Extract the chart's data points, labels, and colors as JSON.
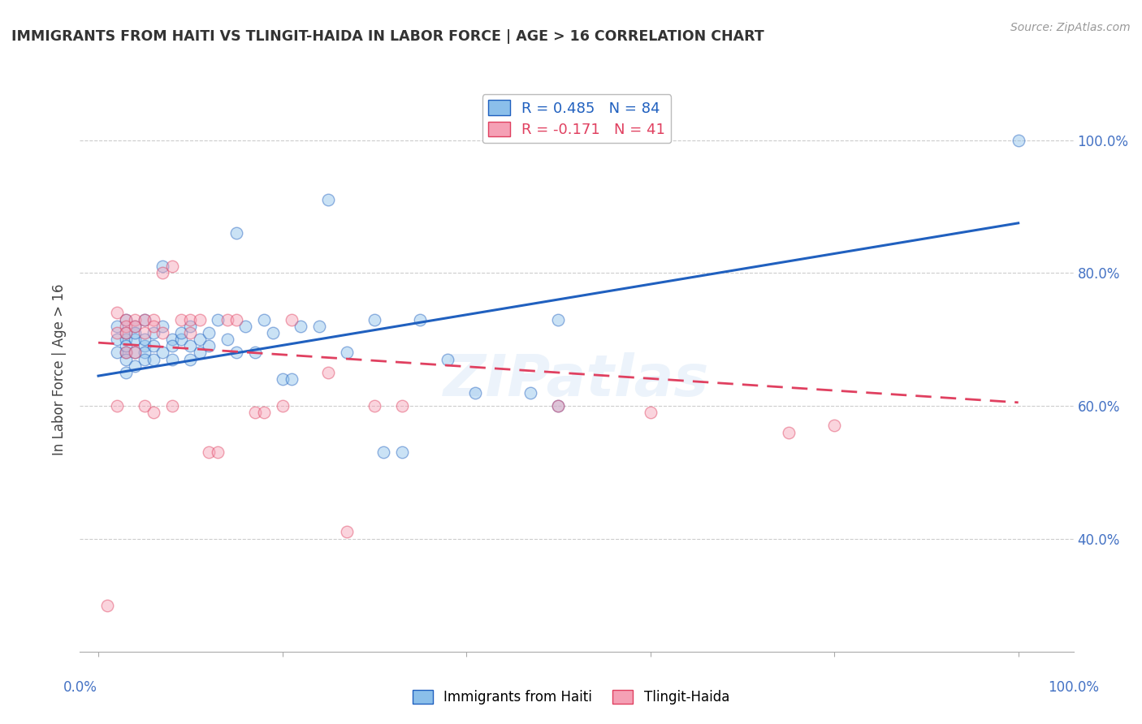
{
  "title": "IMMIGRANTS FROM HAITI VS TLINGIT-HAIDA IN LABOR FORCE | AGE > 16 CORRELATION CHART",
  "source": "Source: ZipAtlas.com",
  "ylabel": "In Labor Force | Age > 16",
  "y_tick_values": [
    1.0,
    0.8,
    0.6,
    0.4
  ],
  "y_tick_labels": [
    "100.0%",
    "80.0%",
    "60.0%",
    "40.0%"
  ],
  "xlim": [
    -0.02,
    1.06
  ],
  "ylim": [
    0.23,
    1.08
  ],
  "color_haiti": "#8bbfea",
  "color_tlingit": "#f5a0b5",
  "trendline_haiti_color": "#2060bf",
  "trendline_tlingit_color": "#e04060",
  "background_color": "#ffffff",
  "grid_color": "#cccccc",
  "axis_label_color": "#4472c4",
  "title_color": "#333333",
  "watermark": "ZIPatlas",
  "haiti_x": [
    0.02,
    0.02,
    0.02,
    0.03,
    0.03,
    0.03,
    0.03,
    0.03,
    0.03,
    0.03,
    0.04,
    0.04,
    0.04,
    0.04,
    0.04,
    0.05,
    0.05,
    0.05,
    0.05,
    0.05,
    0.06,
    0.06,
    0.06,
    0.07,
    0.07,
    0.07,
    0.08,
    0.08,
    0.08,
    0.09,
    0.09,
    0.1,
    0.1,
    0.1,
    0.11,
    0.11,
    0.12,
    0.12,
    0.13,
    0.14,
    0.15,
    0.15,
    0.16,
    0.17,
    0.18,
    0.19,
    0.2,
    0.21,
    0.22,
    0.24,
    0.25,
    0.27,
    0.3,
    0.31,
    0.33,
    0.35,
    0.38,
    0.41,
    0.47,
    0.5,
    0.5,
    1.0
  ],
  "haiti_y": [
    0.68,
    0.7,
    0.72,
    0.68,
    0.7,
    0.71,
    0.69,
    0.67,
    0.73,
    0.65,
    0.7,
    0.68,
    0.72,
    0.66,
    0.71,
    0.69,
    0.68,
    0.7,
    0.67,
    0.73,
    0.71,
    0.69,
    0.67,
    0.72,
    0.68,
    0.81,
    0.7,
    0.69,
    0.67,
    0.7,
    0.71,
    0.69,
    0.72,
    0.67,
    0.7,
    0.68,
    0.71,
    0.69,
    0.73,
    0.7,
    0.86,
    0.68,
    0.72,
    0.68,
    0.73,
    0.71,
    0.64,
    0.64,
    0.72,
    0.72,
    0.91,
    0.68,
    0.73,
    0.53,
    0.53,
    0.73,
    0.67,
    0.62,
    0.62,
    0.6,
    0.73,
    1.0
  ],
  "tlingit_x": [
    0.01,
    0.02,
    0.02,
    0.02,
    0.03,
    0.03,
    0.03,
    0.03,
    0.04,
    0.04,
    0.04,
    0.05,
    0.05,
    0.05,
    0.06,
    0.06,
    0.06,
    0.07,
    0.07,
    0.08,
    0.08,
    0.09,
    0.1,
    0.1,
    0.11,
    0.12,
    0.13,
    0.14,
    0.15,
    0.17,
    0.18,
    0.2,
    0.21,
    0.25,
    0.27,
    0.3,
    0.33,
    0.5,
    0.6,
    0.75,
    0.8
  ],
  "tlingit_y": [
    0.3,
    0.71,
    0.74,
    0.6,
    0.73,
    0.72,
    0.71,
    0.68,
    0.73,
    0.68,
    0.72,
    0.73,
    0.71,
    0.6,
    0.59,
    0.73,
    0.72,
    0.8,
    0.71,
    0.81,
    0.6,
    0.73,
    0.71,
    0.73,
    0.73,
    0.53,
    0.53,
    0.73,
    0.73,
    0.59,
    0.59,
    0.6,
    0.73,
    0.65,
    0.41,
    0.6,
    0.6,
    0.6,
    0.59,
    0.56,
    0.57
  ],
  "haiti_trend_x0": 0.0,
  "haiti_trend_x1": 1.0,
  "haiti_trend_y0": 0.645,
  "haiti_trend_y1": 0.875,
  "tlingit_trend_x0": 0.0,
  "tlingit_trend_x1": 1.0,
  "tlingit_trend_y0": 0.695,
  "tlingit_trend_y1": 0.605,
  "marker_size": 110,
  "marker_alpha": 0.45,
  "legend_label_haiti": "Immigrants from Haiti",
  "legend_label_tlingit": "Tlingit-Haida"
}
